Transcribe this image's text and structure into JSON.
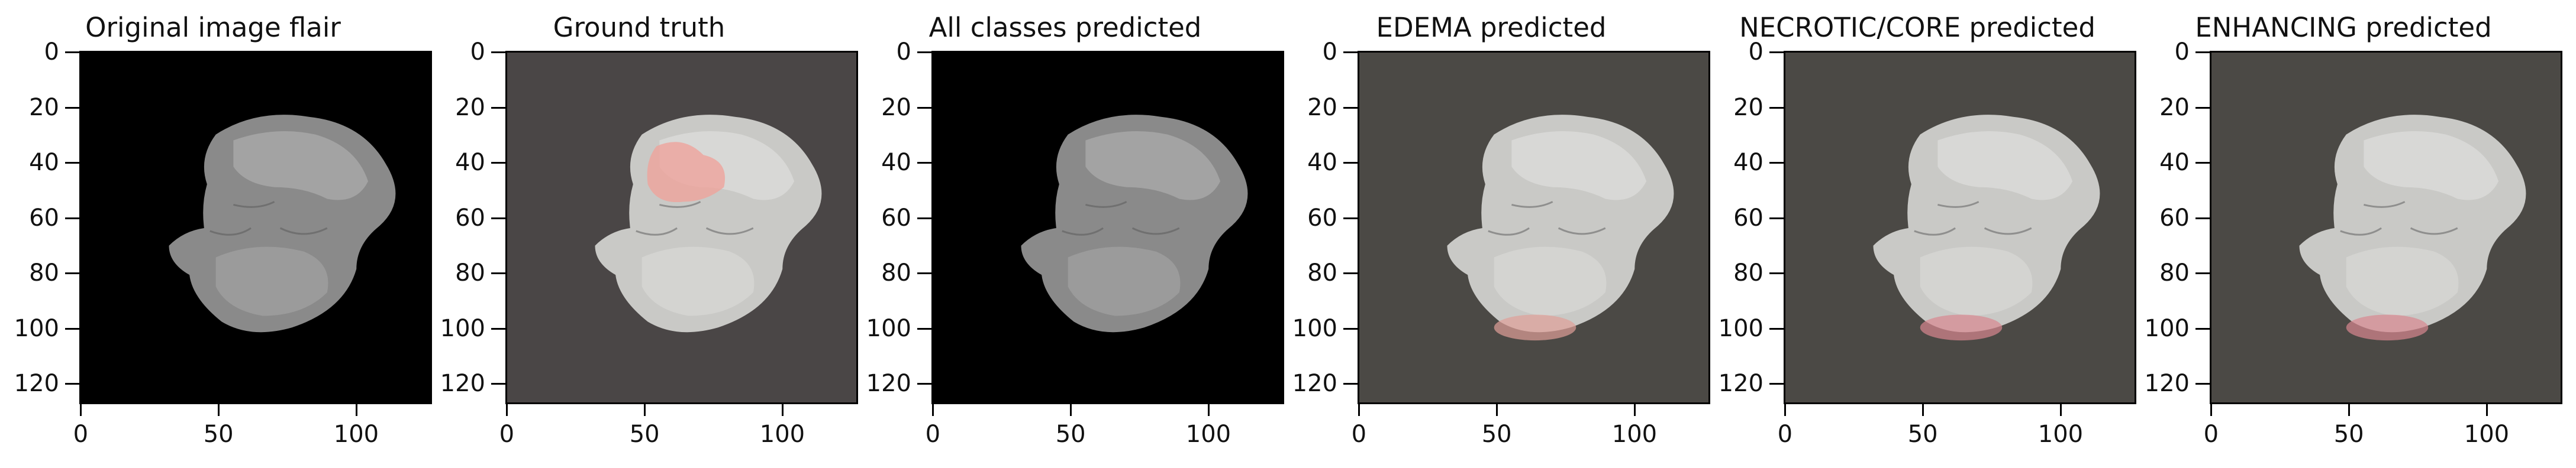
{
  "panels": [
    {
      "title": "Original image flair",
      "background": "#000000",
      "overlay": null,
      "tumor": false
    },
    {
      "title": "Ground truth",
      "background": "#4a4646",
      "overlay": "#f0a098",
      "tumor": true
    },
    {
      "title": "All classes predicted",
      "background": "#000000",
      "overlay": null,
      "tumor": false
    },
    {
      "title": "EDEMA predicted",
      "background": "#4b4945",
      "overlay": "#e0a098",
      "tumor": false
    },
    {
      "title": "NECROTIC/CORE predicted",
      "background": "#4b4945",
      "overlay": "#d88890",
      "tumor": false
    },
    {
      "title": "ENHANCING predicted",
      "background": "#4b4945",
      "overlay": "#d88890",
      "tumor": false
    }
  ],
  "axes": {
    "x_ticks": [
      "0",
      "50",
      "100"
    ],
    "y_ticks": [
      "0",
      "20",
      "40",
      "60",
      "80",
      "100",
      "120"
    ]
  }
}
